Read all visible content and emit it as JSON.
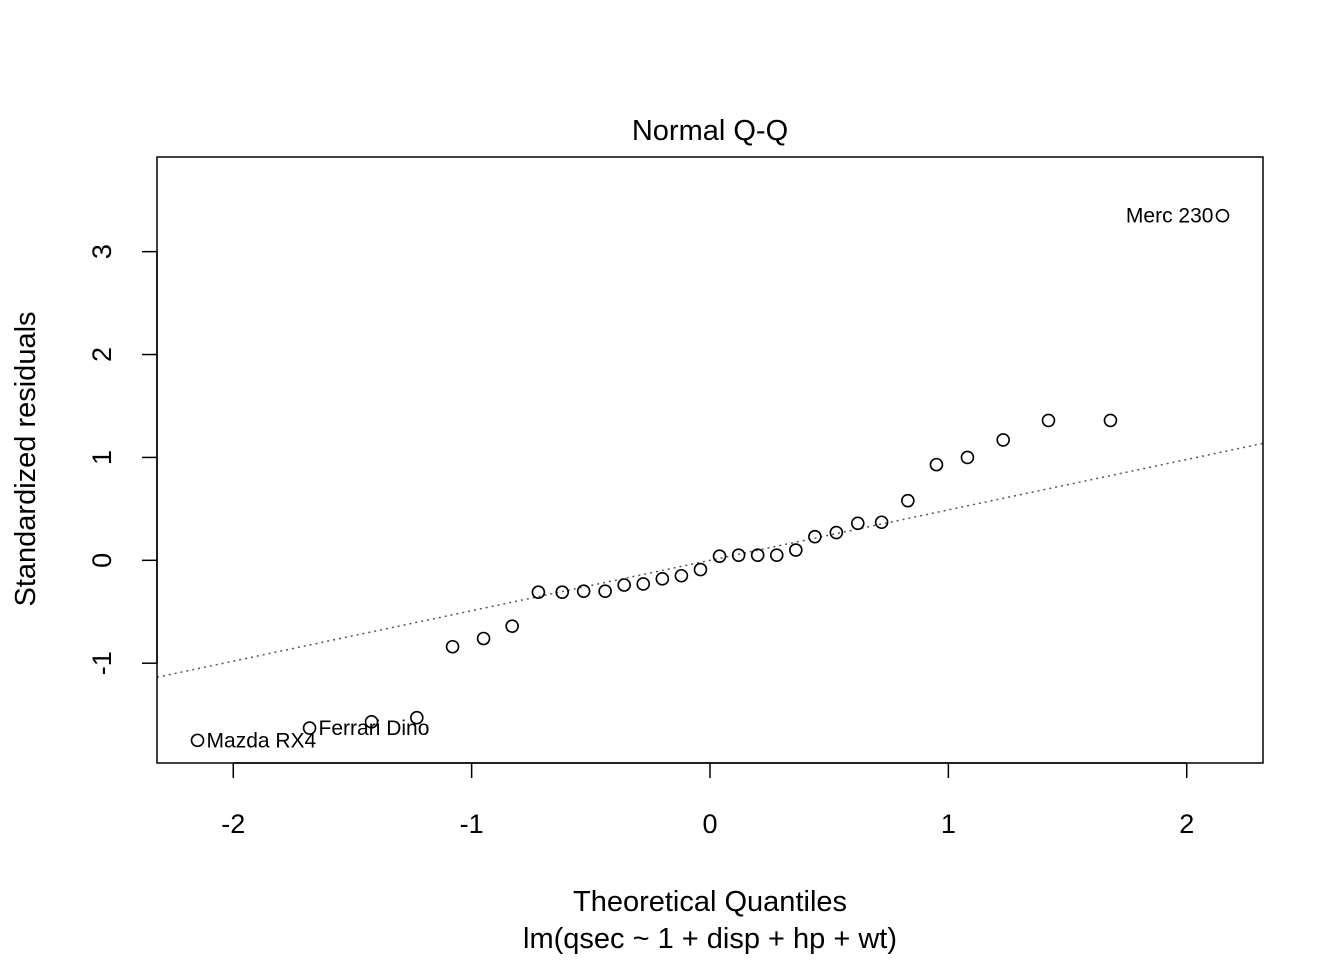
{
  "chart_data": {
    "type": "scatter",
    "title": "Normal Q-Q",
    "xlabel": "Theoretical Quantiles",
    "subtitle": "lm(qsec ~ 1 + disp + hp + wt)",
    "ylabel": "Standardized residuals",
    "xlim": [
      -2.32,
      2.32
    ],
    "ylim": [
      -1.97,
      3.92
    ],
    "xticks": [
      -2,
      -1,
      0,
      1,
      2
    ],
    "xtick_labels": [
      "-2",
      "-1",
      "0",
      "1",
      "2"
    ],
    "yticks": [
      -1,
      0,
      1,
      2,
      3
    ],
    "ytick_labels": [
      "-1",
      "0",
      "1",
      "2",
      "3"
    ],
    "grid": false,
    "reference_line": {
      "slope": 0.49,
      "intercept": 0.0,
      "style": "dotted"
    },
    "points": [
      {
        "x": -2.15,
        "y": -1.75
      },
      {
        "x": -1.68,
        "y": -1.63
      },
      {
        "x": -1.42,
        "y": -1.57
      },
      {
        "x": -1.23,
        "y": -1.53
      },
      {
        "x": -1.08,
        "y": -0.84
      },
      {
        "x": -0.95,
        "y": -0.76
      },
      {
        "x": -0.83,
        "y": -0.64
      },
      {
        "x": -0.72,
        "y": -0.31
      },
      {
        "x": -0.62,
        "y": -0.31
      },
      {
        "x": -0.53,
        "y": -0.3
      },
      {
        "x": -0.44,
        "y": -0.3
      },
      {
        "x": -0.36,
        "y": -0.24
      },
      {
        "x": -0.28,
        "y": -0.23
      },
      {
        "x": -0.2,
        "y": -0.18
      },
      {
        "x": -0.12,
        "y": -0.15
      },
      {
        "x": -0.04,
        "y": -0.09
      },
      {
        "x": 0.04,
        "y": 0.04
      },
      {
        "x": 0.12,
        "y": 0.05
      },
      {
        "x": 0.2,
        "y": 0.05
      },
      {
        "x": 0.28,
        "y": 0.05
      },
      {
        "x": 0.36,
        "y": 0.1
      },
      {
        "x": 0.44,
        "y": 0.23
      },
      {
        "x": 0.53,
        "y": 0.27
      },
      {
        "x": 0.62,
        "y": 0.36
      },
      {
        "x": 0.72,
        "y": 0.37
      },
      {
        "x": 0.83,
        "y": 0.58
      },
      {
        "x": 0.95,
        "y": 0.93
      },
      {
        "x": 1.08,
        "y": 1.0
      },
      {
        "x": 1.23,
        "y": 1.17
      },
      {
        "x": 1.42,
        "y": 1.36
      },
      {
        "x": 1.68,
        "y": 1.36
      },
      {
        "x": 2.15,
        "y": 3.35
      }
    ],
    "annotations": [
      {
        "text": "Mazda RX4",
        "x": -2.15,
        "y": -1.75,
        "side": "right"
      },
      {
        "text": "Ferrari Dino",
        "x": -1.68,
        "y": -1.63,
        "side": "right"
      },
      {
        "text": "Merc 230",
        "x": 2.15,
        "y": 3.35,
        "side": "left"
      }
    ]
  }
}
